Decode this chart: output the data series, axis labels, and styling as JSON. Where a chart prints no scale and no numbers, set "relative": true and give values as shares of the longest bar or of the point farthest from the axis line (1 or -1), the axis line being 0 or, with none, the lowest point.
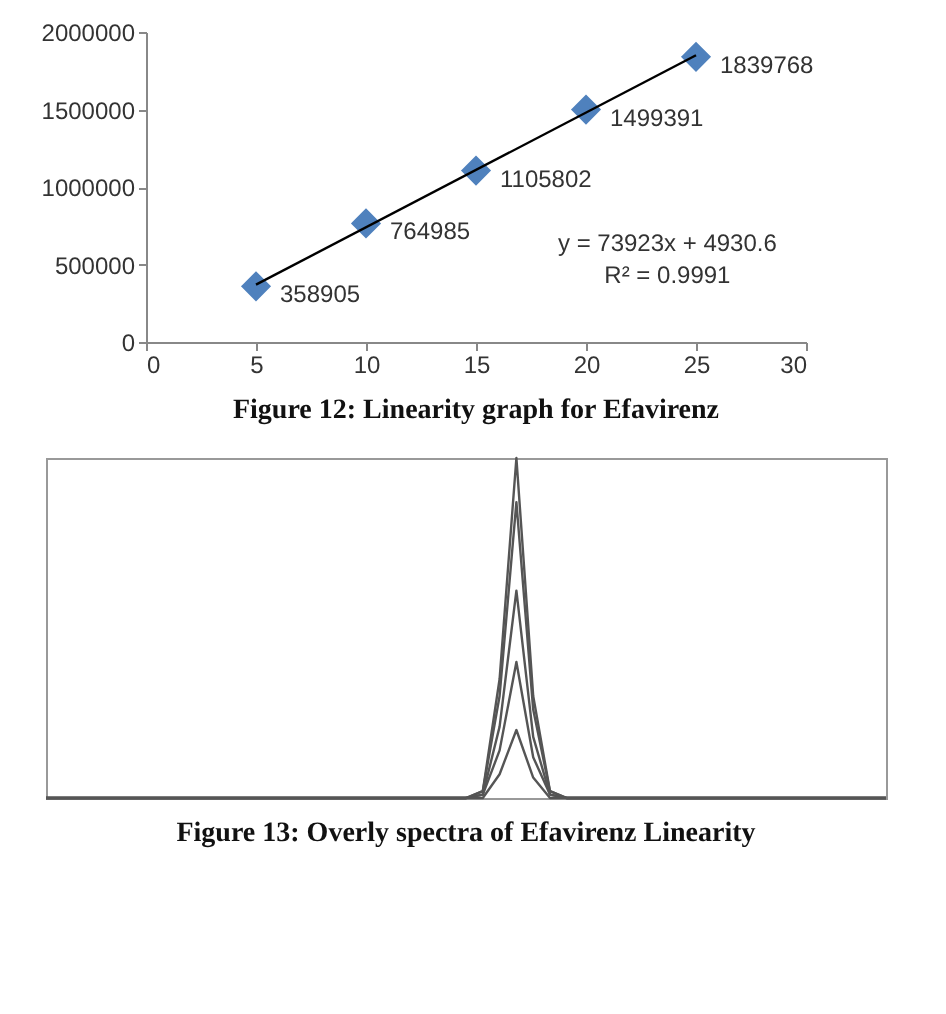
{
  "chart_data": [
    {
      "type": "scatter",
      "title": "Figure 12: Linearity graph for Efavirenz",
      "x": [
        5,
        10,
        15,
        20,
        25
      ],
      "xlim": [
        0,
        30
      ],
      "xticks": [
        0,
        5,
        10,
        15,
        20,
        25,
        30
      ],
      "ylim": [
        0,
        2000000
      ],
      "yticks": [
        0,
        500000,
        1000000,
        1500000,
        2000000
      ],
      "annotations": [
        "y = 73923x + 4930.6",
        "R² = 0.9991"
      ],
      "series": [
        {
          "color": "#4f81bd",
          "marker": "diamond",
          "values": [
            358905,
            764985,
            1105802,
            1499391,
            1839768
          ],
          "value_labels": [
            "358905",
            "764985",
            "1105802",
            "1499391",
            "1839768"
          ]
        },
        {
          "type": "line",
          "color": "#000000",
          "x": [
            5,
            25
          ],
          "values": [
            370000,
            1850000
          ]
        }
      ]
    },
    {
      "type": "line",
      "title": "Figure 13: Overly spectra of Efavirenz Linearity",
      "relative": true,
      "categories": [
        null,
        null,
        null,
        null,
        null,
        null,
        null,
        null,
        null,
        null,
        null,
        null,
        null,
        null,
        null,
        null,
        null,
        null,
        null,
        null,
        null,
        null,
        null,
        null,
        null,
        null,
        null,
        null,
        null,
        null,
        null,
        null,
        null,
        null,
        null,
        null,
        null,
        null,
        null,
        null,
        null,
        null,
        null,
        null,
        null,
        null,
        null,
        null,
        null,
        null,
        null
      ],
      "series": [
        {
          "color": "#555555",
          "values": [
            0,
            0,
            0,
            0,
            0,
            0,
            0,
            0,
            0,
            0,
            0,
            0,
            0,
            0,
            0,
            0,
            0,
            0,
            0,
            0,
            0,
            0,
            0,
            0,
            0,
            0,
            0.02,
            0.35,
            1,
            0.3,
            0.02,
            0,
            0,
            0,
            0,
            0,
            0,
            0,
            0,
            0,
            0,
            0,
            0,
            0,
            0,
            0,
            0,
            0,
            0,
            0,
            0
          ]
        },
        {
          "color": "#555555",
          "values": [
            0,
            0,
            0,
            0,
            0,
            0,
            0,
            0,
            0,
            0,
            0,
            0,
            0,
            0,
            0,
            0,
            0,
            0,
            0,
            0,
            0,
            0,
            0,
            0,
            0,
            0,
            0.02,
            0.3,
            0.87,
            0.26,
            0.02,
            0,
            0,
            0,
            0,
            0,
            0,
            0,
            0,
            0,
            0,
            0,
            0,
            0,
            0,
            0,
            0,
            0,
            0,
            0,
            0
          ]
        },
        {
          "color": "#555555",
          "values": [
            0,
            0,
            0,
            0,
            0,
            0,
            0,
            0,
            0,
            0,
            0,
            0,
            0,
            0,
            0,
            0,
            0,
            0,
            0,
            0,
            0,
            0,
            0,
            0,
            0,
            0,
            0.01,
            0.21,
            0.61,
            0.18,
            0.01,
            0,
            0,
            0,
            0,
            0,
            0,
            0,
            0,
            0,
            0,
            0,
            0,
            0,
            0,
            0,
            0,
            0,
            0,
            0,
            0
          ]
        },
        {
          "color": "#555555",
          "values": [
            0,
            0,
            0,
            0,
            0,
            0,
            0,
            0,
            0,
            0,
            0,
            0,
            0,
            0,
            0,
            0,
            0,
            0,
            0,
            0,
            0,
            0,
            0,
            0,
            0,
            0,
            0.01,
            0.14,
            0.4,
            0.12,
            0.01,
            0,
            0,
            0,
            0,
            0,
            0,
            0,
            0,
            0,
            0,
            0,
            0,
            0,
            0,
            0,
            0,
            0,
            0,
            0,
            0
          ]
        },
        {
          "color": "#555555",
          "values": [
            0,
            0,
            0,
            0,
            0,
            0,
            0,
            0,
            0,
            0,
            0,
            0,
            0,
            0,
            0,
            0,
            0,
            0,
            0,
            0,
            0,
            0,
            0,
            0,
            0,
            0,
            0,
            0.07,
            0.2,
            0.06,
            0,
            0,
            0,
            0,
            0,
            0,
            0,
            0,
            0,
            0,
            0,
            0,
            0,
            0,
            0,
            0,
            0,
            0,
            0,
            0,
            0
          ]
        }
      ]
    }
  ]
}
